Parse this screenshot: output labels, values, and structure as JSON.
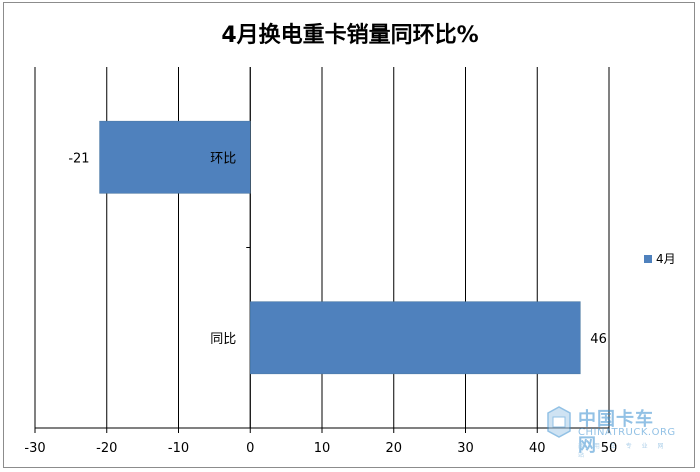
{
  "chart_data": {
    "type": "bar",
    "orientation": "horizontal",
    "title": "4月换电重卡销量同环比%",
    "categories": [
      "同比",
      "环比"
    ],
    "series": [
      {
        "name": "4月",
        "values": [
          46,
          -21
        ],
        "color": "#4f81bd"
      }
    ],
    "data_labels": [
      "46",
      "-21"
    ],
    "xlim": [
      -30,
      50
    ],
    "xticks": [
      -30,
      -20,
      -10,
      0,
      10,
      20,
      30,
      40,
      50
    ],
    "grid": true,
    "legend": "right"
  },
  "watermark": {
    "name_cn": "中国卡车网",
    "name_en": "CHINATRUCK.ORG",
    "tagline": "商 用 车 专 业 网 站"
  }
}
